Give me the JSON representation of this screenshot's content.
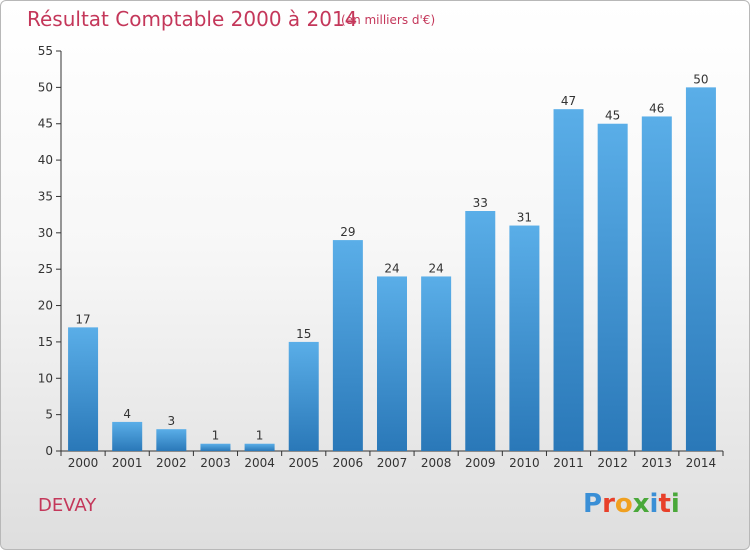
{
  "header": {
    "title": "Résultat Comptable 2000 à 2014",
    "subtitle": "(en milliers d'€)"
  },
  "footer": {
    "commune": "DEVAY",
    "logo_text": "Proxiti"
  },
  "colors": {
    "title": "#c4375a",
    "bar_top": "#5aaee8",
    "bar_bottom": "#2a78b8",
    "logo_letters": [
      "#3a8fd6",
      "#e8402a",
      "#f0a020",
      "#4aa83a",
      "#3a8fd6",
      "#e8402a",
      "#4aa83a"
    ]
  },
  "chart_data": {
    "type": "bar",
    "title": "Résultat Comptable 2000 à 2014",
    "ylabel": "en milliers d'€",
    "xlabel": "",
    "ylim": [
      0,
      55
    ],
    "ytick_step": 5,
    "yticks": [
      "0",
      "5",
      "10",
      "15",
      "20",
      "25",
      "30",
      "35",
      "40",
      "45",
      "50",
      "55"
    ],
    "categories": [
      "2000",
      "2001",
      "2002",
      "2003",
      "2004",
      "2005",
      "2006",
      "2007",
      "2008",
      "2009",
      "2010",
      "2011",
      "2012",
      "2013",
      "2014"
    ],
    "values": [
      17,
      4,
      3,
      1,
      1,
      15,
      29,
      24,
      24,
      33,
      31,
      47,
      45,
      46,
      50
    ],
    "value_labels": [
      "17",
      "4",
      "3",
      "1",
      "1",
      "15",
      "29",
      "24",
      "24",
      "33",
      "31",
      "47",
      "45",
      "46",
      "50"
    ],
    "grid": false
  }
}
